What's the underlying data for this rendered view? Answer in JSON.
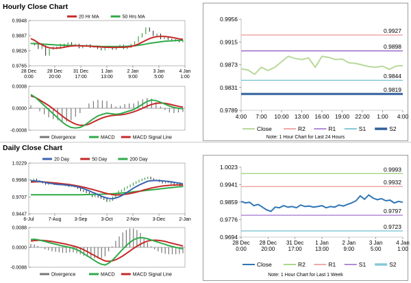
{
  "colors": {
    "up": "#1a8f2a",
    "ma20": "#3a63b0",
    "ma50": "#c62828",
    "ma200": "#2eaa48",
    "macd": "#2eaa48",
    "signal": "#c62828",
    "divergence": "#777777",
    "close": "#b8d89a",
    "close_daily": "#2e75b6",
    "r2": "#f0a8a8",
    "r1": "#b38ad6",
    "s1": "#86c8d8",
    "s2": "#2e5f9a"
  },
  "hourly": {
    "heading": "Hourly Close Chart",
    "price": {
      "yticks": [
        "0.9948",
        "0.9887",
        "0.9826",
        "0.9765"
      ],
      "xticks": [
        [
          "28 Dec",
          "0:00"
        ],
        [
          "28 Dec",
          "20:00"
        ],
        [
          "31 Dec",
          "17:00"
        ],
        [
          "1 Jan",
          "13:00"
        ],
        [
          "2 Jan",
          "9:00"
        ],
        [
          "3 Jan",
          "5:00"
        ],
        [
          "4 Jan",
          "1:00"
        ]
      ],
      "legend": [
        {
          "label": "20 Hr MA",
          "color": "#c62828"
        },
        {
          "label": "50 Hrs MA",
          "color": "#2eaa48"
        }
      ],
      "closes": [
        0.9855,
        0.985,
        0.9835,
        0.9845,
        0.9808,
        0.9832,
        0.984,
        0.9835,
        0.9852,
        0.9845,
        0.9858,
        0.9848,
        0.9852,
        0.9838,
        0.9845,
        0.985,
        0.984,
        0.9842,
        0.9835,
        0.983,
        0.9844,
        0.9838,
        0.9832,
        0.9842,
        0.9848,
        0.9835,
        0.984,
        0.9852,
        0.9862,
        0.9882,
        0.9895,
        0.9918,
        0.9905,
        0.9888,
        0.9893,
        0.9875,
        0.9882,
        0.9872,
        0.987,
        0.9866,
        0.9862,
        0.9868
      ],
      "ma20": [
        0.9875,
        0.9868,
        0.9858,
        0.985,
        0.9842,
        0.9838,
        0.9836,
        0.9836,
        0.9838,
        0.984,
        0.9843,
        0.9845,
        0.9846,
        0.9846,
        0.9845,
        0.9845,
        0.9844,
        0.9843,
        0.9842,
        0.9841,
        0.984,
        0.984,
        0.9839,
        0.9839,
        0.984,
        0.984,
        0.9841,
        0.9843,
        0.9847,
        0.9853,
        0.986,
        0.9868,
        0.9875,
        0.988,
        0.9883,
        0.9884,
        0.9884,
        0.9882,
        0.988,
        0.9877,
        0.9874,
        0.9872
      ],
      "ma50": [
        0.9855,
        0.9855,
        0.9854,
        0.9853,
        0.9852,
        0.9851,
        0.985,
        0.9849,
        0.9849,
        0.9848,
        0.9848,
        0.9847,
        0.9847,
        0.9846,
        0.9846,
        0.9845,
        0.9845,
        0.9844,
        0.9844,
        0.9843,
        0.9843,
        0.9843,
        0.9843,
        0.9843,
        0.9843,
        0.9843,
        0.9844,
        0.9845,
        0.9846,
        0.9848,
        0.985,
        0.9853,
        0.9856,
        0.9858,
        0.986,
        0.9862,
        0.9864,
        0.9865,
        0.9866,
        0.9867,
        0.9868,
        0.9868
      ]
    },
    "macd": {
      "yticks": [
        "0.0008",
        "0.0000",
        "-0.0008"
      ],
      "legend": [
        {
          "label": "Divergence",
          "color": "#777777"
        },
        {
          "label": "MACD",
          "color": "#2eaa48"
        },
        {
          "label": "MACD Signal Line",
          "color": "#c62828"
        }
      ],
      "macd": [
        0.0005,
        0.0004,
        0.00025,
        0.0001,
        -5e-05,
        -0.0002,
        -0.00035,
        -0.0005,
        -0.00062,
        -0.0007,
        -0.00072,
        -0.0007,
        -0.00062,
        -0.0005,
        -0.00038,
        -0.00028,
        -0.00022,
        -0.00018,
        -0.0002,
        -0.00022,
        -0.0002,
        -0.00015,
        -0.0001,
        -5e-05,
        5e-05,
        0.00015,
        0.00025,
        0.0003,
        0.00028,
        0.00022,
        0.00015,
        8e-05,
        3e-05,
        0.0,
        -2e-05
      ],
      "signal": [
        0.00045,
        0.0004,
        0.0003,
        0.0002,
        0.0001,
        -2e-05,
        -0.00015,
        -0.00028,
        -0.0004,
        -0.0005,
        -0.00058,
        -0.00062,
        -0.00062,
        -0.00058,
        -0.0005,
        -0.00042,
        -0.00035,
        -0.0003,
        -0.00027,
        -0.00025,
        -0.00024,
        -0.00022,
        -0.00018,
        -0.00013,
        -7e-05,
        0.0,
        8e-05,
        0.00014,
        0.00018,
        0.00019,
        0.00018,
        0.00015,
        0.00011,
        7e-05,
        4e-05
      ]
    }
  },
  "hourly_levels": {
    "yticks": [
      "0.9956",
      "0.9915",
      "0.9873",
      "0.9831",
      "0.9789"
    ],
    "xticks": [
      "4:00",
      "7:00",
      "10:00",
      "13:00",
      "16:00",
      "19:00",
      "22:00",
      "1:00",
      "4:00"
    ],
    "levels": [
      {
        "name": "R2",
        "value": 0.9927,
        "label": "0.9927",
        "color": "#f0a8a8",
        "width": 1.5
      },
      {
        "name": "R1",
        "value": 0.9898,
        "label": "0.9898",
        "color": "#b38ad6",
        "width": 2
      },
      {
        "name": "S1",
        "value": 0.9844,
        "label": "0.9844",
        "color": "#86c8d8",
        "width": 1.5
      },
      {
        "name": "S2",
        "value": 0.9819,
        "label": "0.9819",
        "color": "#2e5f9a",
        "width": 3
      }
    ],
    "close": [
      0.9865,
      0.9863,
      0.9855,
      0.9868,
      0.9862,
      0.9868,
      0.9878,
      0.9888,
      0.9884,
      0.9882,
      0.9885,
      0.9868,
      0.9888,
      0.9886,
      0.9882,
      0.9883,
      0.9876,
      0.9875,
      0.9872,
      0.9869,
      0.9868,
      0.987,
      0.9864,
      0.987,
      0.9871
    ],
    "legend": [
      {
        "label": "Close",
        "color": "#b8d89a"
      },
      {
        "label": "R2",
        "color": "#f0a8a8"
      },
      {
        "label": "R1",
        "color": "#b38ad6"
      },
      {
        "label": "S1",
        "color": "#86c8d8"
      },
      {
        "label": "S2",
        "color": "#2e5f9a"
      }
    ],
    "note": "Note: 1 Hour Chart for Last 24 Hours"
  },
  "daily": {
    "heading": "Daily Close Chart",
    "price": {
      "yticks": [
        "1.0229",
        "0.9968",
        "0.9707",
        "0.9447"
      ],
      "xticks": [
        "6-Jul",
        "7-Aug",
        "3-Sep",
        "3-Oct",
        "2-Nov",
        "3-Dec",
        "2-Jan"
      ],
      "legend": [
        {
          "label": "20 Day",
          "color": "#3a63b0"
        },
        {
          "label": "50 Day",
          "color": "#c62828"
        },
        {
          "label": "200 Day",
          "color": "#2eaa48"
        }
      ],
      "closes": [
        0.9965,
        0.998,
        0.9955,
        0.9945,
        0.9925,
        0.9905,
        0.992,
        0.9915,
        0.99,
        0.991,
        0.9895,
        0.9905,
        0.9885,
        0.9872,
        0.9888,
        0.9865,
        0.984,
        0.9805,
        0.9795,
        0.9775,
        0.9745,
        0.9715,
        0.9735,
        0.9705,
        0.969,
        0.967,
        0.964,
        0.9655,
        0.9705,
        0.9755,
        0.9795,
        0.981,
        0.9845,
        0.9865,
        0.989,
        0.9918,
        0.994,
        0.9962,
        0.998,
        0.9995,
        1.001,
        0.9985,
        0.9965,
        0.9968,
        0.9945,
        0.9925,
        0.9948,
        0.9935,
        0.9915,
        0.9898,
        0.991,
        0.9875,
        0.9885
      ],
      "ma20": [
        0.9955,
        0.9955,
        0.995,
        0.9945,
        0.994,
        0.993,
        0.992,
        0.9915,
        0.9908,
        0.99,
        0.9898,
        0.9895,
        0.989,
        0.9885,
        0.988,
        0.9872,
        0.9862,
        0.985,
        0.9835,
        0.9818,
        0.98,
        0.978,
        0.9762,
        0.9742,
        0.972,
        0.9705,
        0.969,
        0.9682,
        0.968,
        0.969,
        0.9705,
        0.9725,
        0.975,
        0.978,
        0.981,
        0.984,
        0.9865,
        0.989,
        0.991,
        0.993,
        0.995,
        0.9955,
        0.996,
        0.996,
        0.9958,
        0.9955,
        0.995,
        0.9945,
        0.994,
        0.9932,
        0.9925,
        0.9918,
        0.991
      ],
      "ma50": [
        0.9935,
        0.9938,
        0.994,
        0.994,
        0.9938,
        0.9935,
        0.9932,
        0.9928,
        0.9924,
        0.992,
        0.9915,
        0.991,
        0.9905,
        0.99,
        0.9893,
        0.9885,
        0.9877,
        0.9868,
        0.9858,
        0.9847,
        0.9835,
        0.9823,
        0.981,
        0.9798,
        0.9785,
        0.9772,
        0.976,
        0.975,
        0.9742,
        0.9738,
        0.9738,
        0.974,
        0.9745,
        0.9752,
        0.976,
        0.977,
        0.978,
        0.9792,
        0.9805,
        0.9818,
        0.983,
        0.9842,
        0.9852,
        0.986,
        0.9868,
        0.9875,
        0.988,
        0.9885,
        0.9888,
        0.989,
        0.9892,
        0.9892,
        0.9892
      ],
      "ma200": [
        0.974,
        0.974,
        0.974,
        0.974,
        0.974,
        0.974,
        0.974,
        0.974,
        0.974,
        0.974,
        0.974,
        0.974,
        0.974,
        0.974,
        0.974,
        0.974,
        0.974,
        0.9741,
        0.9742,
        0.9743,
        0.9744,
        0.9745,
        0.9746,
        0.9747,
        0.9748,
        0.975,
        0.9752,
        0.9754,
        0.9757,
        0.976,
        0.9764,
        0.9768,
        0.9772,
        0.9776,
        0.978,
        0.9785,
        0.979,
        0.9795,
        0.98,
        0.9805,
        0.981,
        0.9815,
        0.982,
        0.9825,
        0.983,
        0.9835,
        0.984,
        0.9845,
        0.985,
        0.9855,
        0.986,
        0.9864,
        0.9868
      ]
    },
    "macd": {
      "yticks": [
        "0.0088",
        "0.0000",
        "-0.0088"
      ],
      "legend": [
        {
          "label": "Divergence",
          "color": "#777777"
        },
        {
          "label": "MACD",
          "color": "#2eaa48"
        },
        {
          "label": "MACD Signal Line",
          "color": "#c62828"
        }
      ],
      "macd": [
        0.0035,
        0.0036,
        0.0034,
        0.003,
        0.0026,
        0.0022,
        0.0018,
        0.0014,
        0.001,
        0.0006,
        0.0003,
        0.0,
        -0.0004,
        -0.001,
        -0.0018,
        -0.0028,
        -0.0038,
        -0.0048,
        -0.0058,
        -0.0068,
        -0.0075,
        -0.0078,
        -0.007,
        -0.0058,
        -0.0042,
        -0.0025,
        -0.0008,
        0.0008,
        0.0022,
        0.0033,
        0.004,
        0.0043,
        0.0042,
        0.0038,
        0.0033,
        0.0028,
        0.0023,
        0.0018,
        0.0013,
        0.0008,
        0.0004,
        0.0,
        -0.0003,
        -0.0006
      ],
      "signal": [
        0.0028,
        0.003,
        0.0031,
        0.0031,
        0.003,
        0.0028,
        0.0026,
        0.0023,
        0.002,
        0.0017,
        0.0014,
        0.001,
        0.0006,
        0.0002,
        -0.0004,
        -0.0011,
        -0.0019,
        -0.0028,
        -0.0036,
        -0.0045,
        -0.0053,
        -0.006,
        -0.0062,
        -0.006,
        -0.0055,
        -0.0047,
        -0.0038,
        -0.0027,
        -0.0016,
        -0.0005,
        0.0005,
        0.0014,
        0.0022,
        0.0028,
        0.0031,
        0.0032,
        0.0031,
        0.0029,
        0.0026,
        0.0022,
        0.0018,
        0.0014,
        0.001,
        0.0006
      ]
    }
  },
  "daily_levels": {
    "yticks": [
      "1.0023",
      "0.9941",
      "0.9859",
      "0.9776",
      "0.9694"
    ],
    "xticks": [
      [
        "28 Dec",
        "0:00"
      ],
      [
        "28 Dec",
        "20:00"
      ],
      [
        "31 Dec",
        "17:00"
      ],
      [
        "1 Jan",
        "13:00"
      ],
      [
        "2 Jan",
        "9:00"
      ],
      [
        "3 Jan",
        "5:00"
      ],
      [
        "4 Jan",
        "1:00"
      ]
    ],
    "levels": [
      {
        "name": "R2",
        "value": 0.9993,
        "label": "0.9993",
        "color": "#a8d88a",
        "width": 1.5
      },
      {
        "name": "R1",
        "value": 0.9932,
        "label": "0.9932",
        "color": "#f0a8a8",
        "width": 1.5
      },
      {
        "name": "Close-ref",
        "value": 0.9797,
        "label": "0.9797",
        "color": "#b38ad6",
        "width": 1.5
      },
      {
        "name": "S2",
        "value": 0.9723,
        "label": "0.9723",
        "color": "#86c8d8",
        "width": 1.5
      }
    ],
    "close": [
      0.9862,
      0.9855,
      0.9858,
      0.9842,
      0.9848,
      0.9835,
      0.9822,
      0.9815,
      0.9835,
      0.9832,
      0.9842,
      0.9835,
      0.9838,
      0.9832,
      0.9845,
      0.9838,
      0.984,
      0.9835,
      0.9838,
      0.9842,
      0.9832,
      0.9838,
      0.9835,
      0.9845,
      0.984,
      0.9848,
      0.9855,
      0.9865,
      0.9888,
      0.9872,
      0.9892,
      0.9878,
      0.987,
      0.9875,
      0.9865,
      0.9868,
      0.9855,
      0.9862,
      0.9858
    ],
    "legend": [
      {
        "label": "Close",
        "color": "#2e75b6"
      },
      {
        "label": "R2",
        "color": "#a8d88a"
      },
      {
        "label": "R1",
        "color": "#f0a8a8"
      },
      {
        "label": "S1",
        "color": "#b38ad6"
      },
      {
        "label": "S2",
        "color": "#86c8d8"
      }
    ],
    "note": "Note: 1 Hour Chart for Last 1 Week"
  },
  "chart_data": [
    {
      "type": "line",
      "title": "Hourly Close Chart",
      "series": [
        {
          "name": "20 Hr MA"
        },
        {
          "name": "50 Hrs MA"
        }
      ],
      "ylim": [
        0.9765,
        0.9948
      ]
    },
    {
      "type": "line",
      "title": "",
      "series": [
        {
          "name": "Close"
        },
        {
          "name": "R2",
          "values": [
            0.9927
          ]
        },
        {
          "name": "R1",
          "values": [
            0.9898
          ]
        },
        {
          "name": "S1",
          "values": [
            0.9844
          ]
        },
        {
          "name": "S2",
          "values": [
            0.9819
          ]
        }
      ],
      "ylim": [
        0.9789,
        0.9956
      ]
    },
    {
      "type": "line",
      "title": "Daily Close Chart",
      "series": [
        {
          "name": "20 Day"
        },
        {
          "name": "50 Day"
        },
        {
          "name": "200 Day"
        }
      ],
      "ylim": [
        0.9447,
        1.0229
      ]
    },
    {
      "type": "line",
      "title": "",
      "series": [
        {
          "name": "Close"
        },
        {
          "name": "R2",
          "values": [
            0.9993
          ]
        },
        {
          "name": "R1",
          "values": [
            0.9932
          ]
        },
        {
          "name": "S1",
          "values": [
            0.9797
          ]
        },
        {
          "name": "S2",
          "values": [
            0.9723
          ]
        }
      ],
      "ylim": [
        0.9694,
        1.0023
      ]
    }
  ]
}
